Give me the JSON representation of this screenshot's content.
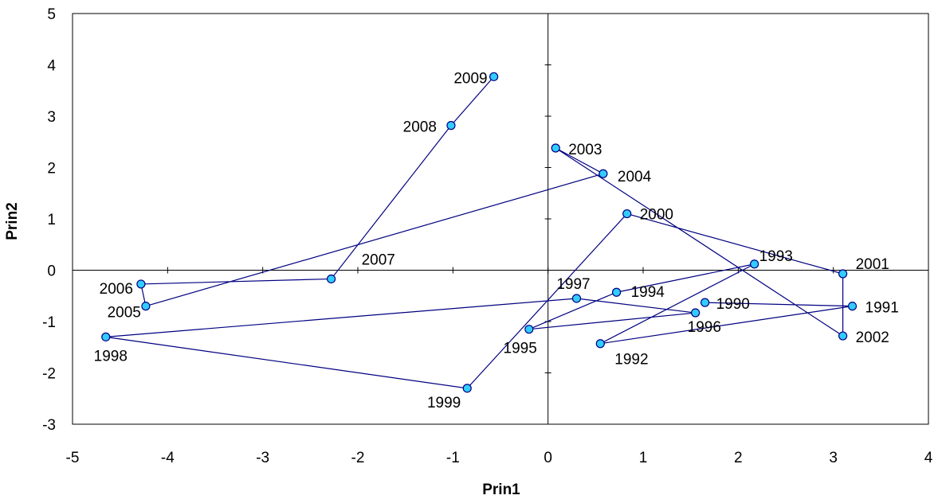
{
  "chart_data": {
    "type": "scatter",
    "title": "",
    "xlabel": "Prin1",
    "ylabel": "Prin2",
    "xlim": [
      -5,
      4
    ],
    "ylim": [
      -3,
      5
    ],
    "xticks": [
      -5,
      -4,
      -3,
      -2,
      -1,
      0,
      1,
      2,
      3,
      4
    ],
    "yticks": [
      -3,
      -2,
      -1,
      0,
      1,
      2,
      3,
      4,
      5
    ],
    "grid": false,
    "legend": "none",
    "connected": true,
    "colors": {
      "line": "#000080",
      "marker_fill": "#33ccff",
      "marker_stroke": "#000080",
      "axes": "#000000"
    },
    "points": [
      {
        "label": "1990",
        "x": 1.65,
        "y": -0.63
      },
      {
        "label": "1991",
        "x": 3.2,
        "y": -0.7
      },
      {
        "label": "1992",
        "x": 0.55,
        "y": -1.43
      },
      {
        "label": "1993",
        "x": 2.17,
        "y": 0.12
      },
      {
        "label": "1994",
        "x": 0.72,
        "y": -0.43
      },
      {
        "label": "1995",
        "x": -0.2,
        "y": -1.15
      },
      {
        "label": "1996",
        "x": 1.55,
        "y": -0.83
      },
      {
        "label": "1997",
        "x": 0.3,
        "y": -0.55
      },
      {
        "label": "1998",
        "x": -4.65,
        "y": -1.3
      },
      {
        "label": "1999",
        "x": -0.85,
        "y": -2.3
      },
      {
        "label": "2000",
        "x": 0.83,
        "y": 1.1
      },
      {
        "label": "2001",
        "x": 3.1,
        "y": -0.07
      },
      {
        "label": "2002",
        "x": 3.1,
        "y": -1.28
      },
      {
        "label": "2003",
        "x": 0.08,
        "y": 2.38
      },
      {
        "label": "2004",
        "x": 0.58,
        "y": 1.88
      },
      {
        "label": "2005",
        "x": -4.23,
        "y": -0.7
      },
      {
        "label": "2006",
        "x": -4.28,
        "y": -0.27
      },
      {
        "label": "2007",
        "x": -2.28,
        "y": -0.17
      },
      {
        "label": "2008",
        "x": -1.02,
        "y": 2.82
      },
      {
        "label": "2009",
        "x": -0.57,
        "y": 3.77
      }
    ]
  }
}
